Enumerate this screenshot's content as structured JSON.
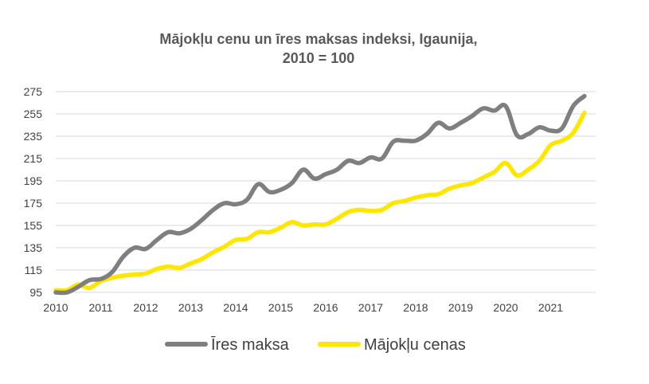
{
  "chart_data": {
    "type": "line",
    "title_line1": "Mājokļu cenu un īres maksas indeksi, Igaunija,",
    "title_line2": "2010 = 100",
    "xlabel": "",
    "ylabel": "",
    "ylim": [
      95,
      275
    ],
    "yticks": [
      95,
      115,
      135,
      155,
      175,
      195,
      215,
      235,
      255,
      275
    ],
    "xlim": [
      2010,
      2022
    ],
    "xticks": [
      2010,
      2011,
      2012,
      2013,
      2014,
      2015,
      2016,
      2017,
      2018,
      2019,
      2020,
      2021
    ],
    "grid": "horizontal",
    "legend_position": "bottom",
    "series": [
      {
        "name": "Īres maksa",
        "color": "#7f7f7f",
        "x": [
          2010.0,
          2010.25,
          2010.5,
          2010.75,
          2011.0,
          2011.25,
          2011.5,
          2011.75,
          2012.0,
          2012.25,
          2012.5,
          2012.75,
          2013.0,
          2013.25,
          2013.5,
          2013.75,
          2014.0,
          2014.25,
          2014.5,
          2014.75,
          2015.0,
          2015.25,
          2015.5,
          2015.75,
          2016.0,
          2016.25,
          2016.5,
          2016.75,
          2017.0,
          2017.25,
          2017.5,
          2017.75,
          2018.0,
          2018.25,
          2018.5,
          2018.75,
          2019.0,
          2019.25,
          2019.5,
          2019.75,
          2020.0,
          2020.25,
          2020.5,
          2020.75,
          2021.0,
          2021.25,
          2021.5,
          2021.75
        ],
        "values": [
          95,
          95,
          100,
          106,
          107,
          113,
          127,
          135,
          134,
          142,
          149,
          148,
          152,
          160,
          169,
          175,
          174,
          178,
          192,
          185,
          187,
          193,
          205,
          197,
          201,
          205,
          213,
          211,
          216,
          215,
          230,
          231,
          231,
          237,
          247,
          242,
          247,
          253,
          260,
          258,
          262,
          236,
          237,
          243,
          240,
          242,
          262,
          271
        ]
      },
      {
        "name": "Mājokļu cenas",
        "color": "#ffe600",
        "x": [
          2010.0,
          2010.25,
          2010.5,
          2010.75,
          2011.0,
          2011.25,
          2011.5,
          2011.75,
          2012.0,
          2012.25,
          2012.5,
          2012.75,
          2013.0,
          2013.25,
          2013.5,
          2013.75,
          2014.0,
          2014.25,
          2014.5,
          2014.75,
          2015.0,
          2015.25,
          2015.5,
          2015.75,
          2016.0,
          2016.25,
          2016.5,
          2016.75,
          2017.0,
          2017.25,
          2017.5,
          2017.75,
          2018.0,
          2018.25,
          2018.5,
          2018.75,
          2019.0,
          2019.25,
          2019.5,
          2019.75,
          2020.0,
          2020.25,
          2020.5,
          2020.75,
          2021.0,
          2021.25,
          2021.5,
          2021.75
        ],
        "values": [
          97,
          97,
          102,
          99,
          105,
          108,
          110,
          111,
          112,
          116,
          118,
          117,
          121,
          125,
          131,
          136,
          142,
          143,
          149,
          149,
          153,
          158,
          155,
          156,
          156,
          161,
          167,
          169,
          168,
          169,
          175,
          177,
          180,
          182,
          183,
          188,
          191,
          193,
          198,
          203,
          211,
          200,
          205,
          213,
          227,
          231,
          238,
          256
        ]
      }
    ]
  }
}
